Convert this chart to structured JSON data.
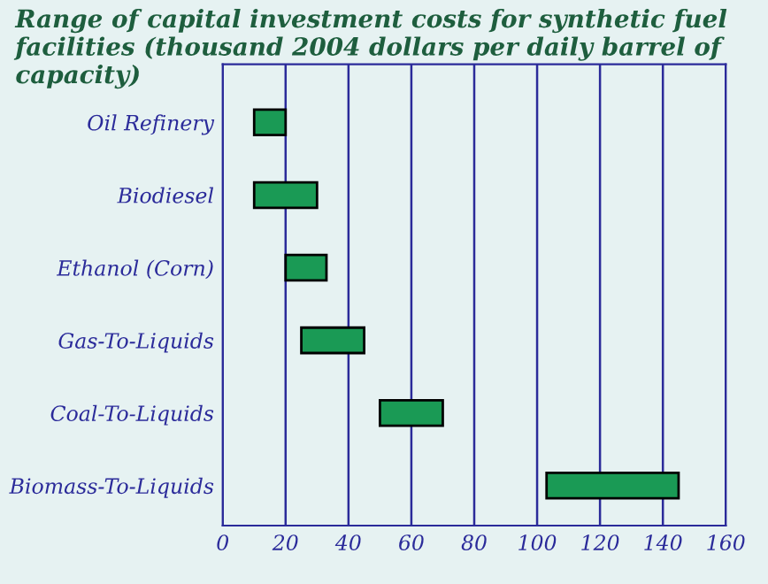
{
  "chart_data": {
    "type": "bar",
    "orientation": "horizontal",
    "title": "Range of capital investment costs for synthetic fuel facilities (thousand 2004 dollars per daily barrel of capacity)",
    "categories": [
      "Oil Refinery",
      "Biodiesel",
      "Ethanol (Corn)",
      "Gas-To-Liquids",
      "Coal-To-Liquids",
      "Biomass-To-Liquids"
    ],
    "base": [
      10,
      10,
      20,
      25,
      50,
      103
    ],
    "values": [
      10,
      20,
      13,
      20,
      20,
      42
    ],
    "color": "#1a9a55",
    "xlim": [
      0,
      160
    ],
    "xticks": [
      0,
      20,
      40,
      60,
      80,
      100,
      120,
      140,
      160
    ],
    "grid": "x"
  }
}
